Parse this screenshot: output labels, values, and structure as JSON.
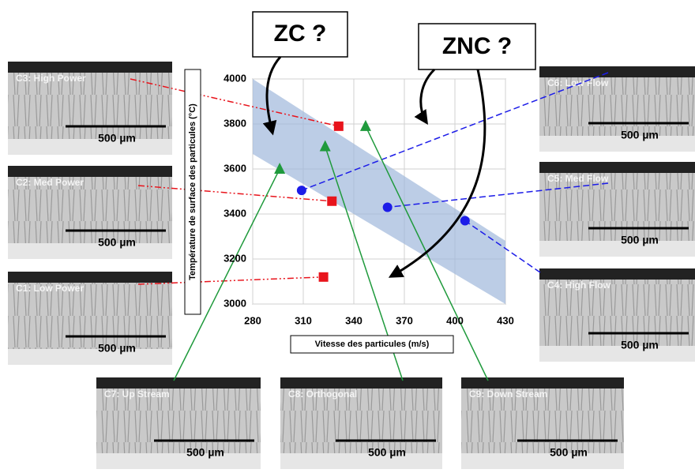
{
  "chart_data": {
    "type": "scatter",
    "x_label": "Vitesse des particules (m/s)",
    "y_label": "Température de surface des particules (°C)",
    "xlim": [
      280,
      430
    ],
    "ylim": [
      3000,
      4000
    ],
    "xticks": [
      280,
      310,
      340,
      370,
      400,
      430
    ],
    "yticks": [
      3000,
      3200,
      3400,
      3600,
      3800,
      4000
    ],
    "grid": true,
    "series": [
      {
        "color": "#e8141c",
        "marker": "square",
        "x": [
          331,
          327,
          322
        ],
        "values": [
          3790,
          3457,
          3120
        ],
        "labels": [
          "C3: High Power",
          "C2: Med Power",
          "C1: Low Power"
        ]
      },
      {
        "color": "#1c1ce8",
        "marker": "circle",
        "x": [
          309,
          360,
          406
        ],
        "values": [
          3505,
          3430,
          3370
        ],
        "labels": [
          "C6: Low Flow",
          "C5: Med Flow",
          "C4: High Flow"
        ]
      },
      {
        "color": "#1f9a3c",
        "marker": "triangle",
        "x": [
          296,
          323,
          347
        ],
        "values": [
          3600,
          3700,
          3790
        ],
        "labels": [
          "C7: Up Stream",
          "C8: Orthogonal",
          "C9: Down Stream"
        ]
      }
    ]
  },
  "annotations": [
    "ZC ?",
    "ZNC ?"
  ],
  "scale_bar": "500 µm"
}
